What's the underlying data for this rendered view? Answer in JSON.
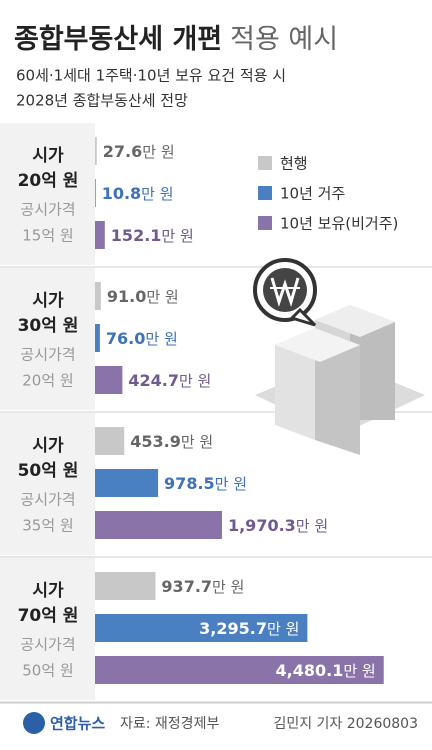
{
  "chart_data": {
    "type": "bar",
    "title": "종합부동산세 개편",
    "title_light": "적용 예시",
    "subtitle": [
      "60세·1세대 1주택·10년 보유 요건 적용 시",
      "2028년 종합부동산세 전망"
    ],
    "categories": [
      [
        "시가",
        "20억 원"
      ],
      [
        "시가",
        "30억 원"
      ],
      [
        "시가",
        "50억 원"
      ],
      [
        "시가",
        "70억 원"
      ]
    ],
    "subcategories": [
      [
        "공시가격",
        "15억 원"
      ],
      [
        "공시가격",
        "20억 원"
      ],
      [
        "공시가격",
        "35억 원"
      ],
      [
        "공시가격",
        "50억 원"
      ]
    ],
    "unit": "만 원",
    "xlim": [
      0,
      4500
    ],
    "series": [
      {
        "name": "현행",
        "color": "#c8c8c8",
        "label_color": "#666666",
        "values": [
          27.6,
          91.0,
          453.9,
          937.7
        ],
        "value_labels": [
          "27.6",
          "91.0",
          "453.9",
          "937.7"
        ]
      },
      {
        "name": "10년 거주",
        "color": "#4a7fc1",
        "label_color": "#3d72b8",
        "values": [
          10.8,
          76.0,
          978.5,
          3295.7
        ],
        "value_labels": [
          "10.8",
          "76.0",
          "978.5",
          "3,295.7"
        ]
      },
      {
        "name": "10년 보유(비거주)",
        "color": "#8a73a8",
        "label_color": "#6f5a8f",
        "values": [
          152.1,
          424.7,
          1970.3,
          4480.1
        ],
        "value_labels": [
          "152.1",
          "424.7",
          "1,970.3",
          "4,480.1"
        ]
      }
    ],
    "logo": "연합뉴스",
    "source": "자료: 재정경제부",
    "credit": "김민지 기자 20260803"
  }
}
